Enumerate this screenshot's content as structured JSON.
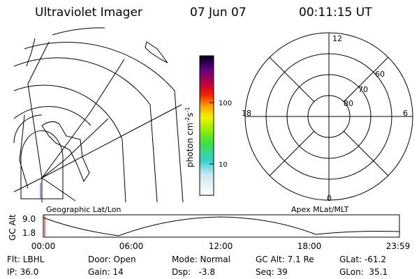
{
  "header": {
    "title": "Ultraviolet Imager",
    "date": "07 Jun 07",
    "time": "00:11:15 UT"
  },
  "colorbar": {
    "label": [
      "photon cm",
      "-2",
      "s",
      "-1"
    ],
    "ticks": [
      "100",
      "10"
    ]
  },
  "polar": {
    "mlt_labels": [
      "12",
      "18",
      "6",
      "0"
    ],
    "mlat_labels": [
      "60",
      "70",
      "80"
    ]
  },
  "strip": {
    "left_label": "Geographic Lat/Lon",
    "right_label": "Apex MLat/MLT",
    "axis_label": "GC Alt",
    "yticks": [
      "9.0",
      "1.8"
    ],
    "xticks": [
      "00:00",
      "06:00",
      "12:00",
      "18:00",
      "23:59"
    ]
  },
  "footer": {
    "rows": [
      [
        "Flt: LBHL",
        "Door: Open",
        "Mode: Normal",
        "GC Alt: 7.1 Re",
        "GLat: -61.2"
      ],
      [
        "IP: 36.0",
        "Gain: 14",
        "Dsp:   -3.8",
        "Seq: 39",
        "GLon:  35.1"
      ]
    ]
  }
}
